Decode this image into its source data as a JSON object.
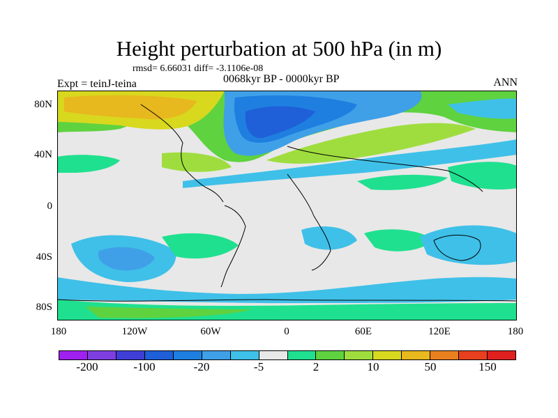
{
  "header": {
    "title": "Height perturbation at 500 hPa (in m)",
    "stats": "rmsd= 6.66031 diff= -3.1106e-08",
    "expt": "Expt = teinJ-teina",
    "period": "0068kyr BP - 0000kyr BP",
    "season": "ANN"
  },
  "map": {
    "lat_labels": [
      "80N",
      "40N",
      "0",
      "40S",
      "80S"
    ],
    "lon_labels": [
      "180",
      "120W",
      "60W",
      "0",
      "60E",
      "120E",
      "180"
    ]
  },
  "colorbar": {
    "colors": [
      "#a020f0",
      "#7f3fe0",
      "#3f3fd8",
      "#1f5fd8",
      "#1f7fe0",
      "#3fa0e8",
      "#3fc0e8",
      "#e8e8e8",
      "#1fe08f",
      "#5fd23f",
      "#9fdd3f",
      "#d8d81f",
      "#e8b81f",
      "#e8801f",
      "#e8401f",
      "#e01f1f"
    ],
    "labels": [
      "-200",
      "-100",
      "-20",
      "-5",
      "2",
      "10",
      "50",
      "150"
    ]
  }
}
